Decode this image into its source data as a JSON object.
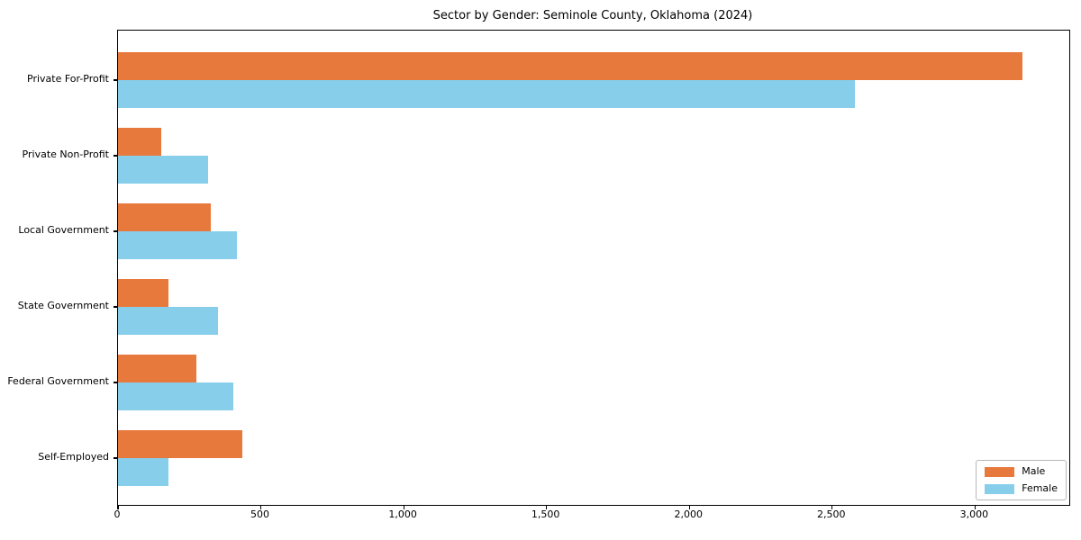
{
  "chart_data": {
    "type": "bar",
    "orientation": "horizontal",
    "title": "Sector by Gender: Seminole County, Oklahoma (2024)",
    "categories": [
      "Private For-Profit",
      "Private Non-Profit",
      "Local Government",
      "State Government",
      "Federal Government",
      "Self-Employed"
    ],
    "series": [
      {
        "name": "Male",
        "color": "#e8793d",
        "values": [
          3165,
          150,
          325,
          175,
          275,
          435
        ]
      },
      {
        "name": "Female",
        "color": "#87ceeb",
        "values": [
          2580,
          315,
          415,
          350,
          405,
          175
        ]
      }
    ],
    "xlabel": "",
    "ylabel": "",
    "xlim": [
      0,
      3330
    ],
    "x_ticks": [
      0,
      500,
      1000,
      1500,
      2000,
      2500,
      3000
    ],
    "x_tick_labels": [
      "0",
      "500",
      "1,000",
      "1,500",
      "2,000",
      "2,500",
      "3,000"
    ],
    "grid": false,
    "legend": {
      "position": "lower right",
      "entries": [
        "Male",
        "Female"
      ]
    }
  }
}
